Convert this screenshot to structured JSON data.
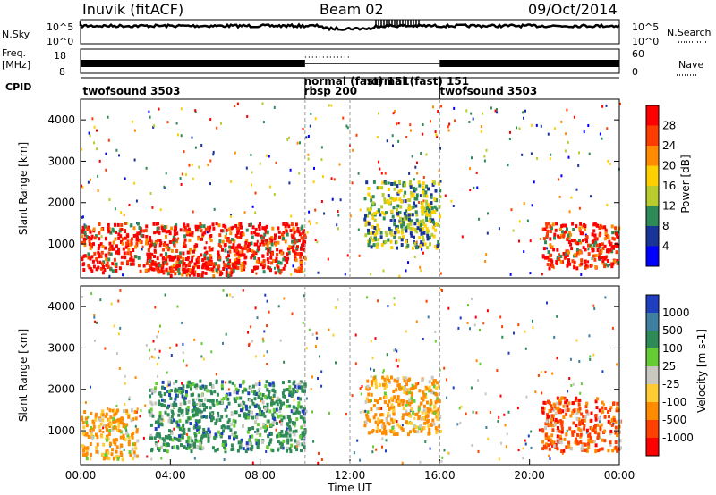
{
  "header": {
    "station": "Inuvik (fitACF)",
    "beam": "Beam 02",
    "date": "09/Oct/2014"
  },
  "aux_panels": {
    "nsky_label": "N.Sky",
    "nsky_ticks": [
      "10^5",
      "10^0"
    ],
    "nsky_right_ticks": [
      "10^5",
      "10^0"
    ],
    "nsearch_label": "N.Search",
    "freq_label": "Freq.",
    "freq_unit": "[MHz]",
    "freq_ticks": [
      "18",
      "8"
    ],
    "nave_ticks": [
      "60",
      "0"
    ],
    "nave_label": "Nave",
    "cpid_label": "CPID",
    "cpid_entries": [
      {
        "text": "twofsound 3503",
        "hour": 0.1,
        "row": 1
      },
      {
        "text": "normal (fast) 151",
        "hour": 9.95,
        "row": 0
      },
      {
        "text": "rbsp 200",
        "hour": 9.95,
        "row": 1
      },
      {
        "text": "normal (fast) 151",
        "hour": 12.6,
        "row": 0
      },
      {
        "text": "twofsound 3503",
        "hour": 16.0,
        "row": 1
      }
    ],
    "cpid_boundaries_hours": [
      10.0,
      16.0
    ]
  },
  "chart_data": [
    {
      "type": "heatmap",
      "name_panel": "power",
      "xlabel": "",
      "ylabel": "Slant Range [km]",
      "xlim_hours": [
        0,
        24
      ],
      "ylim_km": [
        180,
        4500
      ],
      "yticks": [
        1000,
        2000,
        3000,
        4000
      ],
      "colorbar_label": "Power [dB]",
      "colorbar_ticks": [
        "28",
        "24",
        "20",
        "16",
        "12",
        "8",
        "4"
      ],
      "colorbar_colors": [
        "#ff0000",
        "#ff3c00",
        "#ff8c00",
        "#ffd000",
        "#b8cc2e",
        "#2e8b57",
        "#1a3399",
        "#0000ff"
      ],
      "dominant_regions": [
        {
          "hours": [
            0,
            10
          ],
          "range_km": [
            300,
            1500
          ],
          "level": "high"
        },
        {
          "hours": [
            3,
            7
          ],
          "range_km": [
            200,
            700
          ],
          "level": "high"
        },
        {
          "hours": [
            12.6,
            16
          ],
          "range_km": [
            900,
            2500
          ],
          "level": "medium"
        },
        {
          "hours": [
            20.5,
            24
          ],
          "range_km": [
            400,
            1500
          ],
          "level": "high"
        }
      ]
    },
    {
      "type": "heatmap",
      "name_panel": "velocity",
      "xlabel": "Time UT",
      "ylabel": "Slant Range [km]",
      "xlim_hours": [
        0,
        24
      ],
      "ylim_km": [
        180,
        4500
      ],
      "yticks": [
        1000,
        2000,
        3000,
        4000
      ],
      "xticks": [
        "00:00",
        "04:00",
        "08:00",
        "12:00",
        "16:00",
        "20:00",
        "00:00"
      ],
      "colorbar_label": "Velocity [m s-1]",
      "colorbar_ticks": [
        "1000",
        "500",
        "100",
        "25",
        "-25",
        "-100",
        "-500",
        "-1000"
      ],
      "colorbar_colors": [
        "#1f3fbf",
        "#3f7fa0",
        "#2e8b57",
        "#66cc33",
        "#c8c8c0",
        "#ffcc33",
        "#ff8c00",
        "#ff4000",
        "#ff0000"
      ],
      "dominant_regions": [
        {
          "hours": [
            0,
            2.5
          ],
          "range_km": [
            300,
            1500
          ],
          "level": "-100"
        },
        {
          "hours": [
            3,
            10
          ],
          "range_km": [
            500,
            2200
          ],
          "level": "100"
        },
        {
          "hours": [
            12.6,
            16
          ],
          "range_km": [
            900,
            2300
          ],
          "level": "-100"
        },
        {
          "hours": [
            20.5,
            24
          ],
          "range_km": [
            500,
            1800
          ],
          "level": "-500"
        }
      ]
    }
  ]
}
